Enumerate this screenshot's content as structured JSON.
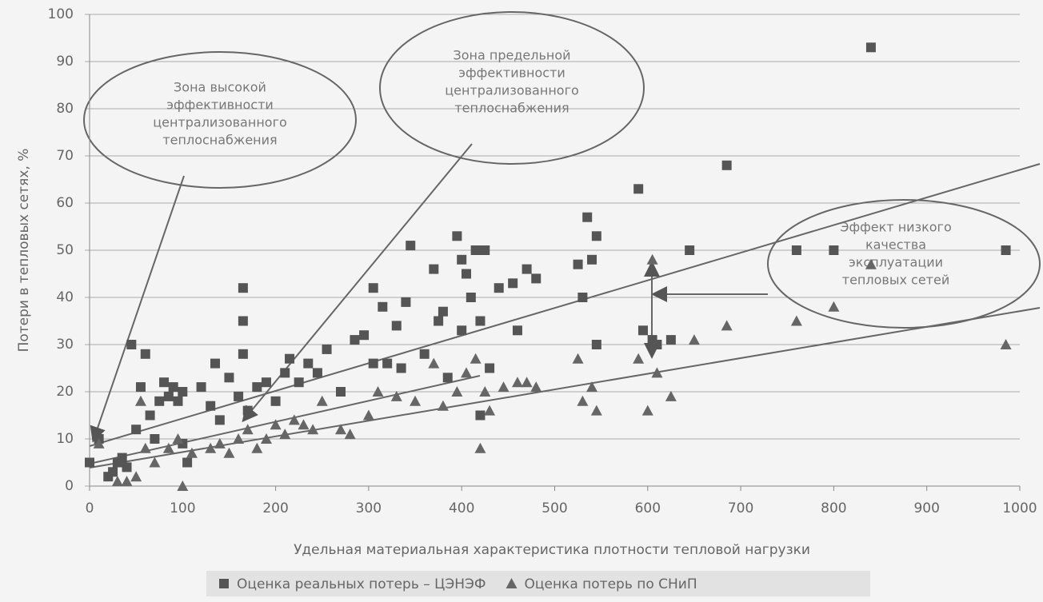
{
  "chart_data": {
    "type": "scatter",
    "xlabel": "Удельная материальная характеристика плотности тепловой нагрузки",
    "ylabel": "Потери в тепловых сетях, %",
    "xlim": [
      0,
      1000
    ],
    "xticks": [
      0,
      100,
      200,
      300,
      400,
      500,
      600,
      700,
      800,
      900,
      1000
    ],
    "ylim": [
      0,
      100
    ],
    "yticks": [
      0,
      10,
      20,
      30,
      40,
      50,
      60,
      70,
      80,
      90,
      100
    ],
    "grid": true,
    "legend": "bottom",
    "annotations": [
      [
        "Зона высокой",
        "эффективности",
        "централизованного",
        "теплоснабжения"
      ],
      [
        "Зона предельной",
        "эффективности",
        "централизованного",
        "теплоснабжения"
      ],
      [
        "Эффект низкого",
        "качества",
        "эксплуатации",
        "тепловых сетей"
      ]
    ],
    "series": [
      {
        "name": "Оценка реальных потерь – ЦЭНЭФ",
        "marker": "square",
        "color": "#555555",
        "x": [
          0,
          10,
          20,
          25,
          30,
          35,
          40,
          45,
          50,
          55,
          60,
          65,
          70,
          75,
          80,
          85,
          90,
          95,
          100,
          100,
          105,
          120,
          130,
          135,
          140,
          150,
          160,
          165,
          165,
          165,
          170,
          180,
          190,
          200,
          210,
          215,
          225,
          235,
          245,
          255,
          270,
          285,
          295,
          305,
          305,
          315,
          320,
          330,
          335,
          340,
          345,
          360,
          370,
          375,
          380,
          385,
          395,
          400,
          400,
          405,
          410,
          415,
          420,
          420,
          425,
          430,
          440,
          455,
          460,
          470,
          480,
          525,
          530,
          535,
          540,
          545,
          545,
          590,
          595,
          605,
          610,
          625,
          645,
          685,
          760,
          800,
          840,
          985
        ],
        "values": [
          5,
          10,
          2,
          3,
          5,
          6,
          4,
          30,
          12,
          21,
          28,
          15,
          10,
          18,
          22,
          19,
          21,
          18,
          20,
          9,
          5,
          21,
          17,
          26,
          14,
          23,
          19,
          42,
          35,
          28,
          16,
          21,
          22,
          18,
          24,
          27,
          22,
          26,
          24,
          29,
          20,
          31,
          32,
          42,
          26,
          38,
          26,
          34,
          25,
          39,
          51,
          28,
          46,
          35,
          37,
          23,
          53,
          48,
          33,
          45,
          40,
          50,
          35,
          15,
          50,
          25,
          42,
          43,
          33,
          46,
          44,
          47,
          40,
          57,
          48,
          53,
          30,
          63,
          33,
          31,
          30,
          31,
          50,
          68,
          50,
          50,
          93,
          50
        ]
      },
      {
        "name": "Оценка потерь по СНиП",
        "marker": "triangle",
        "color": "#666666",
        "x": [
          10,
          30,
          40,
          50,
          55,
          60,
          70,
          85,
          95,
          100,
          110,
          130,
          140,
          150,
          160,
          170,
          180,
          190,
          200,
          210,
          220,
          230,
          240,
          250,
          270,
          280,
          300,
          310,
          330,
          350,
          370,
          380,
          395,
          405,
          415,
          420,
          425,
          430,
          445,
          460,
          470,
          480,
          525,
          530,
          540,
          545,
          590,
          600,
          605,
          610,
          625,
          650,
          685,
          760,
          800,
          840,
          985
        ],
        "values": [
          9,
          1,
          1,
          2,
          18,
          8,
          5,
          8,
          10,
          0,
          7,
          8,
          9,
          7,
          10,
          12,
          8,
          10,
          13,
          11,
          14,
          13,
          12,
          18,
          12,
          11,
          15,
          20,
          19,
          18,
          26,
          17,
          20,
          24,
          27,
          8,
          20,
          16,
          21,
          22,
          22,
          21,
          27,
          18,
          21,
          16,
          27,
          16,
          48,
          24,
          19,
          31,
          34,
          35,
          38,
          47,
          30
        ]
      }
    ]
  }
}
